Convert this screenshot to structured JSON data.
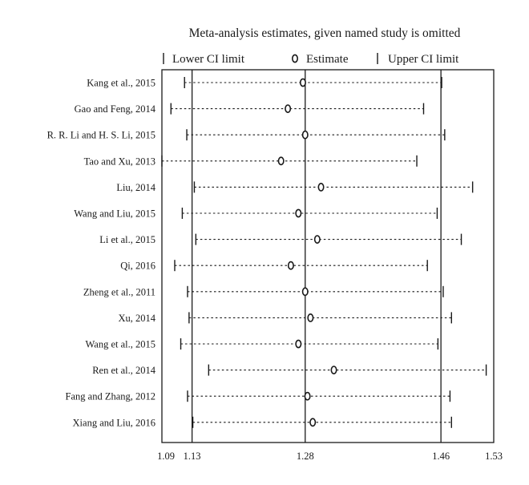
{
  "chart_data": {
    "type": "forest",
    "title": "Meta-analysis estimates, given named study is omitted",
    "legend": {
      "lower": "Lower CI limit",
      "estimate": "Estimate",
      "upper": "Upper CI limit"
    },
    "xlim": [
      1.09,
      1.53
    ],
    "reference_lines": [
      1.13,
      1.28,
      1.46
    ],
    "ticks": [
      {
        "value": 1.09,
        "label": "1.09"
      },
      {
        "value": 1.13,
        "label": "1.13"
      },
      {
        "value": 1.28,
        "label": "1.28"
      },
      {
        "value": 1.46,
        "label": "1.46"
      },
      {
        "value": 1.53,
        "label": "1.53"
      }
    ],
    "studies": [
      {
        "label": "Kang et al., 2015",
        "lower": 1.12,
        "estimate": 1.277,
        "upper": 1.461
      },
      {
        "label": "Gao and Feng, 2014",
        "lower": 1.102,
        "estimate": 1.257,
        "upper": 1.437
      },
      {
        "label": "R. R. Li and H. S. Li, 2015",
        "lower": 1.123,
        "estimate": 1.28,
        "upper": 1.465
      },
      {
        "label": "Tao and Xu, 2013",
        "lower": 1.09,
        "estimate": 1.248,
        "upper": 1.428
      },
      {
        "label": "Liu, 2014",
        "lower": 1.133,
        "estimate": 1.301,
        "upper": 1.502
      },
      {
        "label": "Wang and Liu, 2015",
        "lower": 1.117,
        "estimate": 1.271,
        "upper": 1.455
      },
      {
        "label": "Li et al., 2015",
        "lower": 1.135,
        "estimate": 1.296,
        "upper": 1.487
      },
      {
        "label": "Qi, 2016",
        "lower": 1.107,
        "estimate": 1.261,
        "upper": 1.442
      },
      {
        "label": "Zheng et al., 2011",
        "lower": 1.124,
        "estimate": 1.28,
        "upper": 1.463
      },
      {
        "label": "Xu, 2014",
        "lower": 1.126,
        "estimate": 1.287,
        "upper": 1.474
      },
      {
        "label": "Wang et al., 2015",
        "lower": 1.115,
        "estimate": 1.271,
        "upper": 1.456
      },
      {
        "label": "Ren et al., 2014",
        "lower": 1.152,
        "estimate": 1.318,
        "upper": 1.52
      },
      {
        "label": "Fang and Zhang, 2012",
        "lower": 1.124,
        "estimate": 1.283,
        "upper": 1.472
      },
      {
        "label": "Xiang and Liu, 2016",
        "lower": 1.131,
        "estimate": 1.29,
        "upper": 1.474
      }
    ]
  }
}
